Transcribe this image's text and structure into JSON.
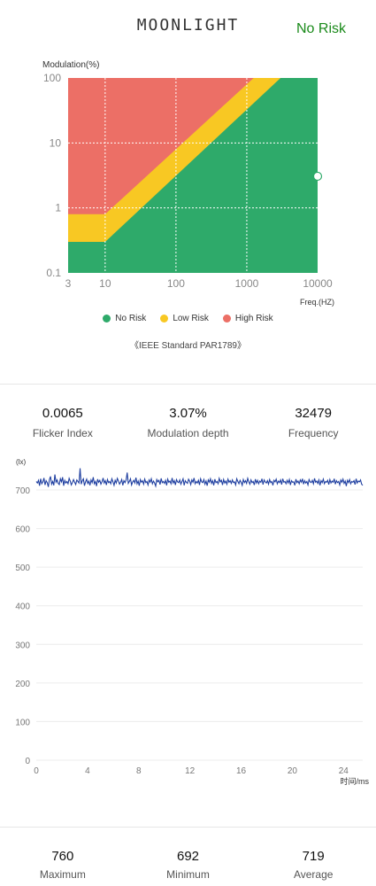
{
  "header": {
    "logo": "MOONLIGHT",
    "risk_status": "No Risk",
    "risk_status_color": "#1a8a1a"
  },
  "risk_chart": {
    "y_title": "Modulation(%)",
    "x_title": "Freq.(HZ)",
    "y_ticks": [
      "100",
      "10",
      "1",
      "0.1"
    ],
    "x_ticks": [
      "3",
      "10",
      "100",
      "1000",
      "10000"
    ],
    "colors": {
      "no_risk": "#2eaa6a",
      "low_risk": "#f8c823",
      "high_risk": "#ec6f66"
    },
    "legend": [
      {
        "label": "No Risk",
        "color": "#2eaa6a"
      },
      {
        "label": "Low Risk",
        "color": "#f8c823"
      },
      {
        "label": "High Risk",
        "color": "#ec6f66"
      }
    ],
    "standard": "《IEEE Standard PAR1789》",
    "marker": {
      "frequency_hz": 32479,
      "modulation_percent": 3.07
    }
  },
  "metrics": [
    {
      "value": "0.0065",
      "label": "Flicker Index"
    },
    {
      "value": "3.07%",
      "label": "Modulation depth"
    },
    {
      "value": "32479",
      "label": "Frequency"
    }
  ],
  "chart_data": {
    "type": "line",
    "ylabel": "(lx)",
    "xlabel": "时间/ms",
    "xlim": [
      0,
      25.5
    ],
    "ylim": [
      0,
      700
    ],
    "x_ticks": [
      "0",
      "4",
      "8",
      "12",
      "16",
      "20",
      "24"
    ],
    "y_ticks": [
      "0",
      "100",
      "200",
      "300",
      "400",
      "500",
      "600",
      "700"
    ],
    "series_color": "#1f3fa0",
    "series": [
      {
        "values": [
          722,
          718,
          725,
          711,
          729,
          716,
          721,
          731,
          713,
          724,
          719,
          708,
          727,
          735,
          715,
          722,
          712,
          740,
          720,
          726,
          717,
          714,
          729,
          721,
          733,
          711,
          725,
          718,
          722,
          716,
          730,
          723,
          713,
          719,
          727,
          720,
          714,
          726,
          722,
          718,
          756,
          715,
          724,
          729,
          711,
          721,
          728,
          717,
          723,
          712,
          726,
          719,
          733,
          716,
          722,
          710,
          728,
          720,
          725,
          715,
          721,
          731,
          718,
          724,
          713,
          727,
          719,
          722,
          716,
          729,
          721,
          712,
          725,
          718,
          730,
          723,
          715,
          720,
          727,
          712,
          724,
          719,
          726,
          745,
          717,
          722,
          729,
          713,
          721,
          725,
          718,
          732,
          716,
          723,
          711,
          727,
          720,
          724,
          715,
          728,
          719,
          722,
          713,
          726,
          720,
          729,
          716,
          723,
          718,
          710,
          727,
          721,
          725,
          714,
          730,
          719,
          722,
          717,
          725,
          712,
          728,
          720,
          723,
          716,
          731,
          718,
          724,
          713,
          727,
          721,
          719,
          726,
          715,
          722,
          729,
          712,
          724,
          720,
          717,
          728,
          723,
          714,
          726,
          720,
          731,
          716,
          722,
          718,
          725,
          713,
          729,
          721,
          719,
          727,
          715,
          723,
          711,
          726,
          720,
          729,
          717,
          724,
          712,
          728,
          719,
          722,
          716,
          730,
          721,
          725,
          713,
          727,
          718,
          723,
          715,
          728,
          720,
          724,
          717,
          726,
          719,
          721,
          713,
          729,
          722,
          716,
          725,
          720,
          712,
          727,
          719,
          724,
          717,
          730,
          721,
          715,
          726,
          719,
          722,
          713,
          728,
          718,
          725,
          716,
          723,
          720,
          729,
          714,
          726,
          721,
          718,
          724,
          715,
          727,
          719,
          722,
          712,
          725,
          721,
          728,
          716,
          723,
          719,
          726,
          714,
          729,
          720,
          722,
          716,
          725,
          718,
          727,
          713,
          724,
          720,
          721,
          712,
          728,
          719,
          723,
          716,
          726,
          720,
          729,
          715,
          724,
          718,
          722,
          713,
          727,
          721,
          719,
          725,
          716,
          730,
          720,
          723,
          717,
          726,
          712,
          724,
          719,
          728,
          716,
          722,
          720,
          725,
          714,
          727,
          718,
          723,
          720,
          729,
          715,
          724,
          719,
          722,
          713,
          726,
          720,
          728,
          717,
          723,
          710,
          725,
          719,
          727,
          716,
          722,
          720,
          724,
          714,
          729,
          718,
          723,
          721,
          726,
          715,
          712
        ]
      }
    ]
  },
  "stats": [
    {
      "value": "760",
      "label": "Maximum"
    },
    {
      "value": "692",
      "label": "Minimum"
    },
    {
      "value": "719",
      "label": "Average"
    }
  ]
}
